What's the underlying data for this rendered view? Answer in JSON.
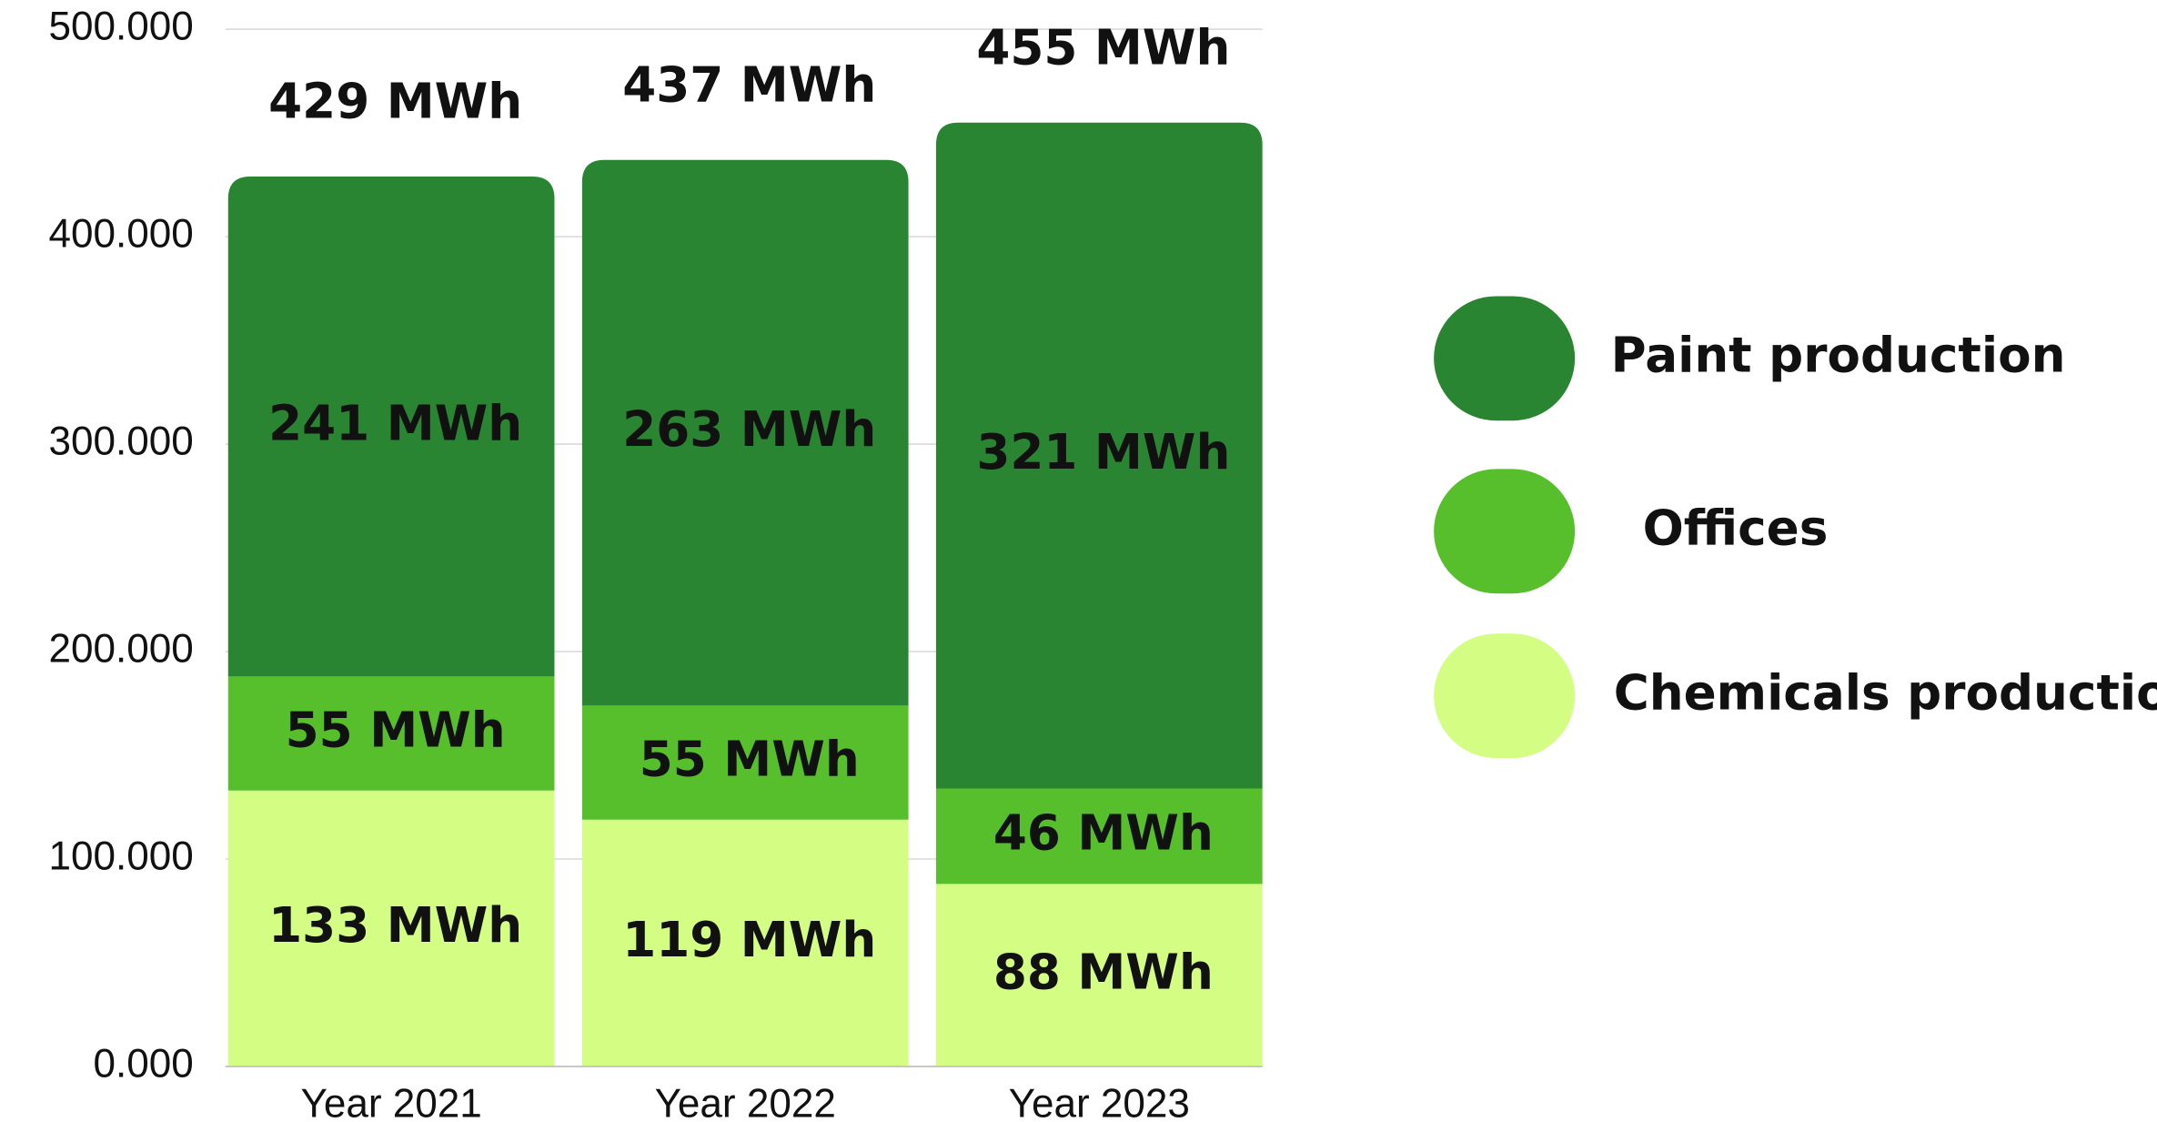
{
  "chart_data": {
    "type": "stacked_bar",
    "categories": [
      "Year 2021",
      "Year 2022",
      "Year 2023"
    ],
    "series": [
      {
        "name": "Paint production",
        "color": "#2a8533",
        "values": [
          241000,
          263000,
          321000
        ],
        "value_labels": [
          "241 MWh",
          "263 MWh",
          "321 MWh"
        ]
      },
      {
        "name": "Offices",
        "color": "#58bf2c",
        "values": [
          55000,
          55000,
          46000
        ],
        "value_labels": [
          "55 MWh",
          "55 MWh",
          "46 MWh"
        ]
      },
      {
        "name": "Chemicals production",
        "color": "#d4fd84",
        "values": [
          133000,
          119000,
          88000
        ],
        "value_labels": [
          "133 MWh",
          "119 MWh",
          "88 MWh"
        ]
      }
    ],
    "totals": [
      429000,
      437000,
      455000
    ],
    "total_labels": [
      "429 MWh",
      "437 MWh",
      "455 MWh"
    ],
    "ylim": [
      0,
      500000
    ],
    "yticks": [
      {
        "value": 0,
        "label": "0.000"
      },
      {
        "value": 100000,
        "label": "100.000"
      },
      {
        "value": 200000,
        "label": "200.000"
      },
      {
        "value": 300000,
        "label": "300.000"
      },
      {
        "value": 400000,
        "label": "400.000"
      },
      {
        "value": 500000,
        "label": "500.000"
      }
    ],
    "grid": true,
    "legend": "right"
  }
}
